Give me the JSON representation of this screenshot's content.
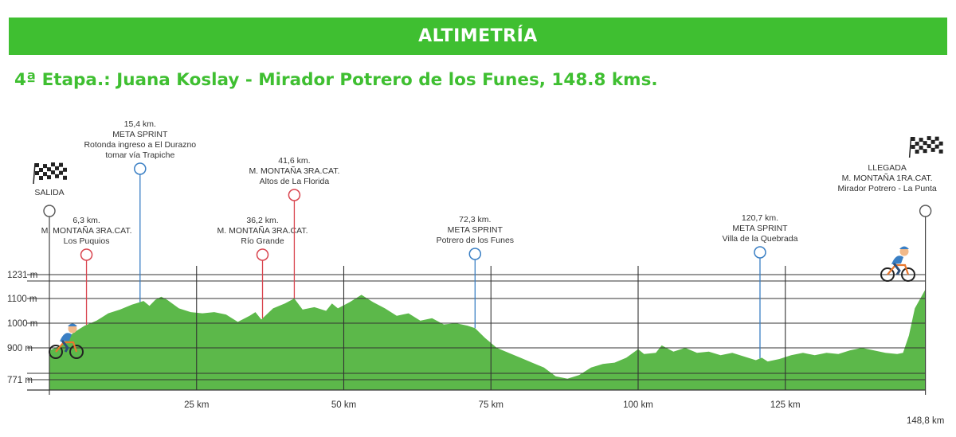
{
  "header": {
    "banner": "ALTIMETRÍA",
    "stage": "4ª Etapa.: Juana Koslay - Mirador Potrero de los Funes, 148.8 kms."
  },
  "colors": {
    "banner": "#3fbf31",
    "terrain": "#5cb84a",
    "sprint": "#3a7fc4",
    "mountain": "#d9454f",
    "endpoint": "#555555"
  },
  "chart_data": {
    "type": "area",
    "x_axis": {
      "min": 0,
      "max": 148.8,
      "ticks": [
        {
          "value": 25,
          "label": "25 km"
        },
        {
          "value": 50,
          "label": "50 km"
        },
        {
          "value": 75,
          "label": "75 km"
        },
        {
          "value": 100,
          "label": "100 km"
        },
        {
          "value": 125,
          "label": "125 km"
        },
        {
          "value": 148.8,
          "label": "148,8 km"
        }
      ]
    },
    "y_axis": {
      "ticks": [
        {
          "value": 771,
          "label": "771 m"
        },
        {
          "value": 900,
          "label": "900 m"
        },
        {
          "value": 1000,
          "label": "1000 m"
        },
        {
          "value": 1100,
          "label": "1100 m"
        },
        {
          "value": 1231,
          "label": "1231 m"
        }
      ]
    },
    "profile": [
      [
        0,
        890
      ],
      [
        2,
        910
      ],
      [
        4,
        960
      ],
      [
        6,
        990
      ],
      [
        8,
        1010
      ],
      [
        10,
        1040
      ],
      [
        12,
        1055
      ],
      [
        14,
        1075
      ],
      [
        16,
        1090
      ],
      [
        17,
        1070
      ],
      [
        18,
        1095
      ],
      [
        19,
        1110
      ],
      [
        20,
        1095
      ],
      [
        22,
        1060
      ],
      [
        24,
        1045
      ],
      [
        26,
        1040
      ],
      [
        28,
        1045
      ],
      [
        30,
        1035
      ],
      [
        32,
        1005
      ],
      [
        34,
        1030
      ],
      [
        35,
        1045
      ],
      [
        36,
        1015
      ],
      [
        38,
        1060
      ],
      [
        40,
        1080
      ],
      [
        41.6,
        1100
      ],
      [
        43,
        1055
      ],
      [
        45,
        1065
      ],
      [
        47,
        1050
      ],
      [
        48,
        1080
      ],
      [
        49,
        1060
      ],
      [
        51,
        1085
      ],
      [
        53,
        1120
      ],
      [
        55,
        1085
      ],
      [
        57,
        1060
      ],
      [
        59,
        1030
      ],
      [
        61,
        1040
      ],
      [
        63,
        1010
      ],
      [
        65,
        1020
      ],
      [
        67,
        995
      ],
      [
        69,
        1000
      ],
      [
        71,
        990
      ],
      [
        72.3,
        980
      ],
      [
        74,
        940
      ],
      [
        76,
        900
      ],
      [
        78,
        880
      ],
      [
        80,
        860
      ],
      [
        82,
        840
      ],
      [
        84,
        820
      ],
      [
        86,
        785
      ],
      [
        88,
        775
      ],
      [
        90,
        790
      ],
      [
        92,
        820
      ],
      [
        94,
        835
      ],
      [
        96,
        840
      ],
      [
        98,
        860
      ],
      [
        100,
        895
      ],
      [
        101,
        875
      ],
      [
        103,
        880
      ],
      [
        104,
        910
      ],
      [
        106,
        885
      ],
      [
        108,
        900
      ],
      [
        110,
        880
      ],
      [
        112,
        885
      ],
      [
        114,
        870
      ],
      [
        116,
        880
      ],
      [
        118,
        865
      ],
      [
        120,
        850
      ],
      [
        121,
        860
      ],
      [
        122,
        845
      ],
      [
        124,
        855
      ],
      [
        126,
        870
      ],
      [
        128,
        880
      ],
      [
        130,
        870
      ],
      [
        132,
        880
      ],
      [
        134,
        875
      ],
      [
        136,
        890
      ],
      [
        138,
        900
      ],
      [
        140,
        890
      ],
      [
        142,
        880
      ],
      [
        144,
        875
      ],
      [
        145,
        880
      ],
      [
        146,
        950
      ],
      [
        147,
        1060
      ],
      [
        148.8,
        1150
      ]
    ],
    "annotations": [
      {
        "km": 0,
        "kind": "endpoint",
        "lines": [
          "SALIDA"
        ]
      },
      {
        "km": 6.3,
        "kind": "mountain",
        "lines": [
          "6,3 km.",
          "M. MONTAÑA 3RA.CAT.",
          "Los Puquios"
        ]
      },
      {
        "km": 15.4,
        "kind": "sprint",
        "lines": [
          "15,4 km.",
          "META SPRINT",
          "Rotonda ingreso a El Durazno",
          "tomar vía Trapiche"
        ]
      },
      {
        "km": 36.2,
        "kind": "mountain",
        "lines": [
          "36,2 km.",
          "M. MONTAÑA 3RA.CAT.",
          "Río Grande"
        ]
      },
      {
        "km": 41.6,
        "kind": "mountain",
        "lines": [
          "41,6 km.",
          "M. MONTAÑA 3RA.CAT.",
          "Altos de La Florida"
        ]
      },
      {
        "km": 72.3,
        "kind": "sprint",
        "lines": [
          "72,3 km.",
          "META SPRINT",
          "Potrero de los Funes"
        ]
      },
      {
        "km": 120.7,
        "kind": "sprint",
        "lines": [
          "120,7 km.",
          "META SPRINT",
          "Villa de la Quebrada"
        ]
      },
      {
        "km": 148.8,
        "kind": "endpoint",
        "lines": [
          "LLEGADA",
          "M. MONTAÑA 1RA.CAT.",
          "Mirador Potrero - La Punta"
        ]
      }
    ]
  }
}
